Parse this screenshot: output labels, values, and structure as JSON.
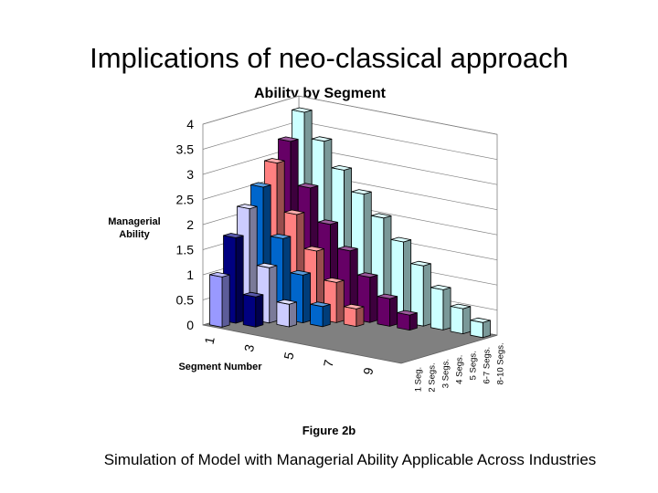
{
  "slide": {
    "title": "Implications of neo-classical approach",
    "figure_label": "Figure 2b",
    "caption": "Simulation of Model with Managerial Ability Applicable Across Industries"
  },
  "chart_data": {
    "type": "bar-3d",
    "title": "Ability by Segment",
    "ylabel": "Managerial\nAbility",
    "xlabel": "Segment Number",
    "ylim": [
      0,
      4
    ],
    "yticks": [
      "0",
      "0.5",
      "1",
      "1.5",
      "2",
      "2.5",
      "3",
      "3.5",
      "4"
    ],
    "xticks": [
      "1",
      "3",
      "5",
      "7",
      "9"
    ],
    "grid": true,
    "series": [
      {
        "name": "1 Seg.",
        "color": "#9999ff",
        "values": [
          1.0
        ]
      },
      {
        "name": "2 Segs.",
        "color": "#000080",
        "values": [
          1.7,
          0.6
        ]
      },
      {
        "name": "3 Segs.",
        "color": "#ccccff",
        "values": [
          2.2,
          1.1,
          0.45
        ]
      },
      {
        "name": "4 Segs.",
        "color": "#0066cc",
        "values": [
          2.55,
          1.6,
          0.95,
          0.4
        ]
      },
      {
        "name": "5 Segs.",
        "color": "#ff8080",
        "values": [
          2.95,
          2.0,
          1.35,
          0.8,
          0.35
        ]
      },
      {
        "name": "6-7 Segs.",
        "color": "#660066",
        "values": [
          3.3,
          2.45,
          1.8,
          1.35,
          0.9,
          0.55,
          0.3
        ]
      },
      {
        "name": "8-10 Segs.",
        "color": "#ccffff",
        "values": [
          3.8,
          3.3,
          2.8,
          2.4,
          2.0,
          1.6,
          1.2,
          0.8,
          0.5,
          0.3
        ]
      }
    ]
  }
}
